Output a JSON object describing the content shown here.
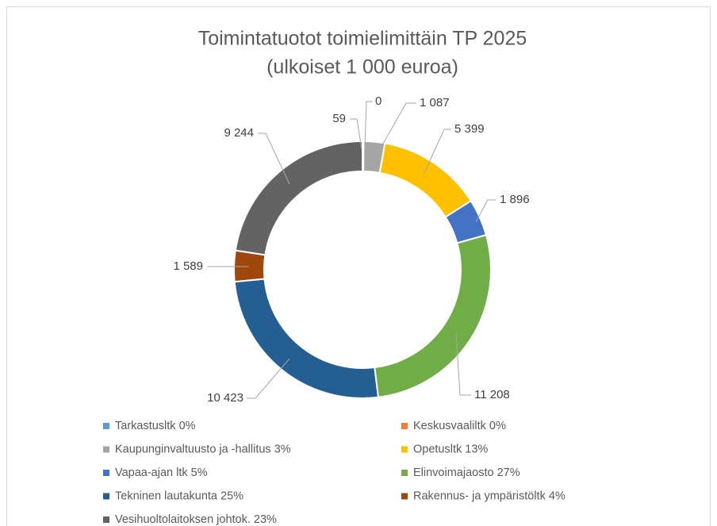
{
  "chart_data": {
    "type": "doughnut",
    "title": "Toimintatuotot toimielimittäin TP 2025",
    "subtitle": "(ulkoiset 1 000 euroa)",
    "categories": [
      "Tarkastusltk 0%",
      "Keskusvaaliltk 0%",
      "Kaupunginvaltuusto ja -hallitus 3%",
      "Opetusltk 13%",
      "Vapaa-ajan ltk 5%",
      "Elinvoimajaosto 27%",
      "Tekninen lautakunta 25%",
      "Rakennus- ja ympäristöltk 4%",
      "Vesihuoltolaitoksen johtok. 23%"
    ],
    "values": [
      59,
      0,
      1087,
      5399,
      1896,
      11208,
      10423,
      1589,
      9244
    ],
    "value_labels": [
      "59",
      "0",
      "1 087",
      "5 399",
      "1 896",
      "11 208",
      "10 423",
      "1 589",
      "9 244"
    ],
    "colors": [
      "#5b9bd5",
      "#ed7d31",
      "#a5a5a5",
      "#ffc000",
      "#4472c4",
      "#70ad47",
      "#255e91",
      "#9e480e",
      "#636363"
    ],
    "legend": "bottom"
  }
}
